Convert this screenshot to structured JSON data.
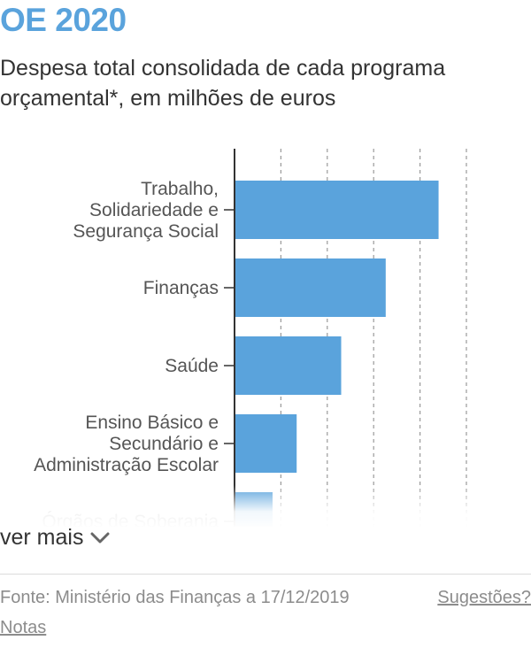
{
  "header": {
    "title": "OE 2020",
    "subtitle": "Despesa total consolidada de cada programa orçamental*, em milhões de euros"
  },
  "chart_data": {
    "type": "bar",
    "orientation": "horizontal",
    "categories": [
      "Trabalho, Solidariedade e Segurança Social",
      "Finanças",
      "Saúde",
      "Ensino Básico e Secundário e Administração Escolar",
      "Órgãos de Soberania"
    ],
    "category_lines": [
      [
        "Trabalho,",
        "Solidariedade e",
        "Segurança Social"
      ],
      [
        "Finanças"
      ],
      [
        "Saúde"
      ],
      [
        "Ensino Básico e",
        "Secundário e",
        "Administração Escolar"
      ],
      [
        "Órgãos de Soberania"
      ]
    ],
    "values": [
      22000,
      16300,
      11500,
      6700,
      4100
    ],
    "xlim": [
      0,
      25000
    ],
    "grid_x": [
      5000,
      10000,
      15000,
      20000,
      25000
    ],
    "grid": true,
    "bar_color": "#5aa3dc",
    "xlabel": "",
    "ylabel": ""
  },
  "more": {
    "label": "ver mais"
  },
  "footer": {
    "source": "Fonte: Ministério das Finanças a 17/12/2019",
    "suggestions": "Sugestões?",
    "notes": "Notas"
  }
}
